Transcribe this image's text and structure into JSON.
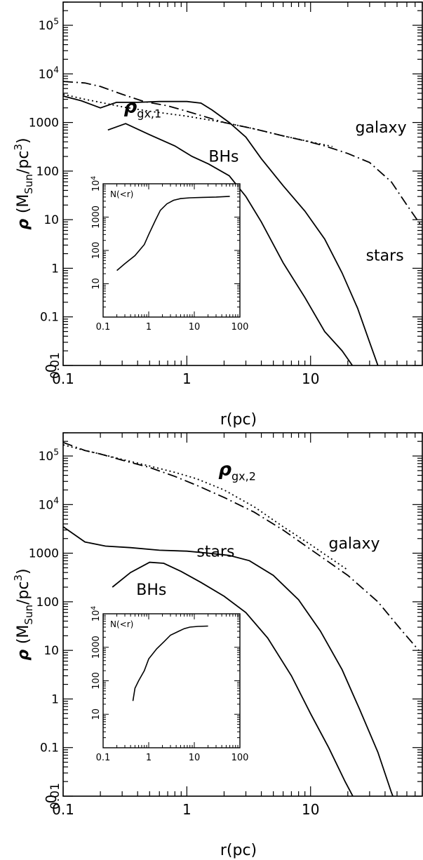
{
  "chart_data": [
    {
      "type": "line",
      "xscale": "log",
      "yscale": "log",
      "xlim": [
        0.1,
        80
      ],
      "ylim": [
        0.01,
        300000
      ],
      "xlabel": "r(pc)",
      "ylabel": "ρ (M_Sun/pc^3)",
      "xticks": [
        {
          "v": 0.1,
          "t": "0.1"
        },
        {
          "v": 1,
          "t": "1"
        },
        {
          "v": 10,
          "t": "10"
        }
      ],
      "yticks": [
        {
          "v": 0.01,
          "t": "0.01"
        },
        {
          "v": 0.1,
          "t": "0.1"
        },
        {
          "v": 1,
          "t": "1"
        },
        {
          "v": 10,
          "t": "10"
        },
        {
          "v": 100,
          "t": "100"
        },
        {
          "v": 1000,
          "t": "1000"
        },
        {
          "v": 10000,
          "t": "10",
          "sup": "4"
        },
        {
          "v": 100000,
          "t": "10",
          "sup": "5"
        }
      ],
      "y_origin_label": "0",
      "series": [
        {
          "name": "stars",
          "style": "solid",
          "x": [
            0.1,
            0.14,
            0.2,
            0.27,
            0.4,
            0.6,
            1.0,
            1.3,
            1.6,
            2.2,
            3.0,
            4.0,
            6.0,
            9.0,
            13,
            18,
            24,
            30,
            35,
            40
          ],
          "y": [
            3500,
            2800,
            2000,
            2600,
            2600,
            2700,
            2700,
            2500,
            1800,
            1000,
            500,
            180,
            50,
            15,
            4,
            0.8,
            0.15,
            0.03,
            0.01,
            0.007
          ]
        },
        {
          "name": "BHs",
          "style": "solid",
          "x": [
            0.23,
            0.32,
            0.5,
            0.8,
            1.1,
            1.5,
            2.2,
            3.0,
            4.0,
            6,
            9,
            13,
            18,
            24,
            28
          ],
          "y": [
            700,
            950,
            560,
            330,
            200,
            140,
            80,
            30,
            9,
            1.3,
            0.25,
            0.05,
            0.02,
            0.007,
            0.005
          ]
        },
        {
          "name": "galaxy",
          "style": "dashdot",
          "x": [
            0.1,
            0.15,
            0.2,
            0.3,
            0.45,
            0.7,
            1,
            2,
            3.5,
            6,
            9,
            13,
            20,
            30,
            45,
            60,
            80
          ],
          "y": [
            7000,
            6500,
            5500,
            3800,
            2700,
            2200,
            1700,
            1000,
            740,
            530,
            420,
            330,
            230,
            150,
            60,
            20,
            7
          ]
        },
        {
          "name": "ρgx,1",
          "style": "dotted",
          "x": [
            0.1,
            0.15,
            0.2,
            0.3,
            0.5,
            1,
            2,
            3.5,
            6,
            10,
            15
          ],
          "y": [
            3800,
            3000,
            2600,
            2100,
            1700,
            1350,
            1000,
            740,
            530,
            400,
            320
          ]
        }
      ],
      "annotations": [
        {
          "text": "galaxy",
          "x": 23,
          "y": 620
        },
        {
          "text": "BHs",
          "x": 1.5,
          "y": 155
        },
        {
          "text": "stars",
          "x": 28,
          "y": 1.45
        },
        {
          "text": "ρ",
          "sub": "gx,1",
          "x": 0.31,
          "y": 1600
        }
      ],
      "inset": {
        "xscale": "log",
        "yscale": "log",
        "xlim": [
          0.1,
          100
        ],
        "ylim": [
          1,
          10000
        ],
        "label": "N(<r)",
        "xticks": [
          {
            "v": 0.1,
            "t": "0.1"
          },
          {
            "v": 1,
            "t": "1"
          },
          {
            "v": 10,
            "t": "10"
          },
          {
            "v": 100,
            "t": "100"
          }
        ],
        "yticks": [
          {
            "v": 10,
            "t": "10"
          },
          {
            "v": 100,
            "t": "100"
          },
          {
            "v": 1000,
            "t": "1000"
          },
          {
            "v": 10000,
            "t": "10",
            "sup": "4"
          }
        ],
        "x": [
          0.2,
          0.3,
          0.5,
          0.8,
          1.0,
          1.4,
          1.8,
          2.5,
          3.5,
          5,
          8,
          15,
          30,
          60
        ],
        "y": [
          25,
          40,
          70,
          150,
          300,
          800,
          1600,
          2500,
          3200,
          3600,
          3800,
          3900,
          4000,
          4200
        ]
      }
    },
    {
      "type": "line",
      "xscale": "log",
      "yscale": "log",
      "xlim": [
        0.1,
        80
      ],
      "ylim": [
        0.01,
        300000
      ],
      "xlabel": "r(pc)",
      "ylabel": "ρ (M_Sun/pc^3)",
      "xticks": [
        {
          "v": 0.1,
          "t": "0.1"
        },
        {
          "v": 1,
          "t": "1"
        },
        {
          "v": 10,
          "t": "10"
        }
      ],
      "yticks": [
        {
          "v": 0.01,
          "t": "0.01"
        },
        {
          "v": 0.1,
          "t": "0.1"
        },
        {
          "v": 1,
          "t": "1"
        },
        {
          "v": 10,
          "t": "10"
        },
        {
          "v": 100,
          "t": "100"
        },
        {
          "v": 1000,
          "t": "1000"
        },
        {
          "v": 10000,
          "t": "10",
          "sup": "4"
        },
        {
          "v": 100000,
          "t": "10",
          "sup": "5"
        }
      ],
      "y_origin_label": "0",
      "series": [
        {
          "name": "stars",
          "style": "solid",
          "x": [
            0.1,
            0.15,
            0.22,
            0.35,
            0.6,
            1.0,
            1.5,
            2.2,
            3.2,
            5,
            8,
            12,
            18,
            25,
            35,
            45,
            50
          ],
          "y": [
            3500,
            1700,
            1400,
            1300,
            1150,
            1100,
            1000,
            900,
            700,
            350,
            110,
            25,
            4,
            0.6,
            0.08,
            0.012,
            0.006
          ]
        },
        {
          "name": "BHs",
          "style": "solid",
          "x": [
            0.25,
            0.35,
            0.5,
            0.65,
            0.9,
            1.3,
            2,
            3,
            4.5,
            7,
            10,
            14,
            19,
            23
          ],
          "y": [
            200,
            400,
            650,
            620,
            420,
            250,
            130,
            60,
            18,
            3,
            0.5,
            0.1,
            0.02,
            0.008
          ]
        },
        {
          "name": "galaxy",
          "style": "dashdot",
          "x": [
            0.1,
            0.15,
            0.2,
            0.3,
            0.5,
            0.8,
            1.2,
            2,
            3.5,
            6,
            10,
            20,
            35,
            55,
            75
          ],
          "y": [
            190000,
            130000,
            110000,
            82000,
            58000,
            38000,
            25000,
            14000,
            7000,
            3000,
            1200,
            350,
            100,
            25,
            10
          ]
        },
        {
          "name": "ρgx,2",
          "style": "dotted",
          "x": [
            0.1,
            0.15,
            0.2,
            0.3,
            0.5,
            0.8,
            1.2,
            2,
            3.5,
            6,
            10,
            20
          ],
          "y": [
            170000,
            130000,
            110000,
            85000,
            62000,
            46000,
            34000,
            20000,
            9000,
            3500,
            1500,
            450
          ]
        }
      ],
      "annotations": [
        {
          "text": "galaxy",
          "x": 14,
          "y": 1250
        },
        {
          "text": "stars",
          "x": 1.2,
          "y": 850
        },
        {
          "text": "BHs",
          "x": 0.39,
          "y": 140
        },
        {
          "text": "ρ",
          "sub": "gx,2",
          "x": 1.8,
          "y": 40000
        }
      ],
      "inset": {
        "xscale": "log",
        "yscale": "log",
        "xlim": [
          0.1,
          100
        ],
        "ylim": [
          1,
          10000
        ],
        "label": "N(<r)",
        "xticks": [
          {
            "v": 0.1,
            "t": "0.1"
          },
          {
            "v": 1,
            "t": "1"
          },
          {
            "v": 10,
            "t": "10"
          },
          {
            "v": 100,
            "t": "100"
          }
        ],
        "yticks": [
          {
            "v": 10,
            "t": "10"
          },
          {
            "v": 100,
            "t": "100"
          },
          {
            "v": 1000,
            "t": "1000"
          },
          {
            "v": 10000,
            "t": "10",
            "sup": "4"
          }
        ],
        "x": [
          0.45,
          0.5,
          0.6,
          0.8,
          1.0,
          1.5,
          2.2,
          3,
          4.5,
          6,
          8,
          12,
          20
        ],
        "y": [
          25,
          60,
          100,
          200,
          450,
          900,
          1500,
          2300,
          3000,
          3600,
          4000,
          4200,
          4300
        ]
      }
    }
  ]
}
